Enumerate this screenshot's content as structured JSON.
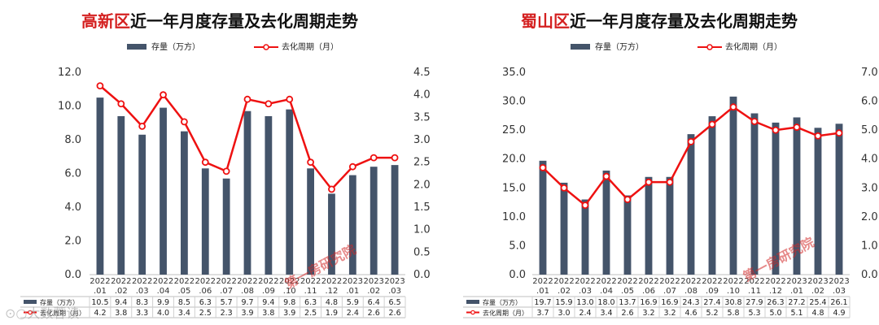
{
  "colors": {
    "bar": "#44546a",
    "line": "#ee1111",
    "title_highlight": "#d42020",
    "grid": "#d9d9d9"
  },
  "page": {
    "corner_watermark": "⊙○大数蓉读"
  },
  "chart_data": [
    {
      "id": "left",
      "type": "bar",
      "title_highlight": "高新区",
      "title_rest": "近一年月度存量及去化周期走势",
      "watermark": "第一房研究院",
      "categories": [
        [
          "2022",
          ".01"
        ],
        [
          "2022",
          ".02"
        ],
        [
          "2022",
          ".03"
        ],
        [
          "2022",
          ".04"
        ],
        [
          "2022",
          ".05"
        ],
        [
          "2022",
          ".06"
        ],
        [
          "2022",
          ".07"
        ],
        [
          "2022",
          ".08"
        ],
        [
          "2022",
          ".09"
        ],
        [
          "2022",
          ".10"
        ],
        [
          "2022",
          ".11"
        ],
        [
          "2022",
          ".12"
        ],
        [
          "2023",
          ".01"
        ],
        [
          "2023",
          ".02"
        ],
        [
          "2023",
          ".03"
        ]
      ],
      "series": [
        {
          "name": "存量（万方）",
          "type": "bar",
          "axis": "left",
          "values": [
            10.5,
            9.4,
            8.3,
            9.9,
            8.5,
            6.3,
            5.7,
            9.7,
            9.4,
            9.8,
            6.3,
            4.8,
            5.9,
            6.4,
            6.5
          ],
          "labels": [
            "10.5",
            "9.4",
            "8.3",
            "9.9",
            "8.5",
            "6.3",
            "5.7",
            "9.7",
            "9.4",
            "9.8",
            "6.3",
            "4.8",
            "5.9",
            "6.4",
            "6.5"
          ]
        },
        {
          "name": "去化周期（月）",
          "type": "line",
          "axis": "right",
          "values": [
            4.2,
            3.8,
            3.3,
            4.0,
            3.4,
            2.5,
            2.3,
            3.9,
            3.8,
            3.9,
            2.5,
            1.9,
            2.4,
            2.6,
            2.6
          ],
          "labels": [
            "4.2",
            "3.8",
            "3.3",
            "4.0",
            "3.4",
            "2.5",
            "2.3",
            "3.9",
            "3.8",
            "3.9",
            "2.5",
            "1.9",
            "2.4",
            "2.6",
            "2.6"
          ]
        }
      ],
      "y_left": {
        "min": 0,
        "max": 12,
        "ticks": [
          "0.0",
          "2.0",
          "4.0",
          "6.0",
          "8.0",
          "10.0",
          "12.0"
        ]
      },
      "y_right": {
        "min": 0,
        "max": 4.5,
        "ticks": [
          "0.0",
          "0.5",
          "1.0",
          "1.5",
          "2.0",
          "2.5",
          "3.0",
          "3.5",
          "4.0",
          "4.5"
        ]
      },
      "legend_position": "top"
    },
    {
      "id": "right",
      "type": "bar",
      "title_highlight": "蜀山区",
      "title_rest": "近一年月度存量及去化周期走势",
      "watermark": "第一房研究院",
      "categories": [
        [
          "2022",
          ".01"
        ],
        [
          "2022",
          ".02"
        ],
        [
          "2022",
          ".03"
        ],
        [
          "2022",
          ".04"
        ],
        [
          "2022",
          ".05"
        ],
        [
          "2022",
          ".06"
        ],
        [
          "2022",
          ".07"
        ],
        [
          "2022",
          ".08"
        ],
        [
          "2022",
          ".09"
        ],
        [
          "2022",
          ".10"
        ],
        [
          "2022",
          ".11"
        ],
        [
          "2022",
          ".12"
        ],
        [
          "2023",
          ".01"
        ],
        [
          "2023",
          ".02"
        ],
        [
          "2023",
          ".03"
        ]
      ],
      "series": [
        {
          "name": "存量（万方）",
          "type": "bar",
          "axis": "left",
          "values": [
            19.7,
            15.9,
            13.0,
            18.0,
            13.7,
            16.9,
            16.9,
            24.3,
            27.4,
            30.8,
            27.9,
            26.3,
            27.2,
            25.4,
            26.1
          ],
          "labels": [
            "19.7",
            "15.9",
            "13.0",
            "18.0",
            "13.7",
            "16.9",
            "16.9",
            "24.3",
            "27.4",
            "30.8",
            "27.9",
            "26.3",
            "27.2",
            "25.4",
            "26.1"
          ]
        },
        {
          "name": "去化周期（月）",
          "type": "line",
          "axis": "right",
          "values": [
            3.7,
            3.0,
            2.4,
            3.4,
            2.6,
            3.2,
            3.2,
            4.6,
            5.2,
            5.8,
            5.3,
            5.0,
            5.1,
            4.8,
            4.9
          ],
          "labels": [
            "3.7",
            "3.0",
            "2.4",
            "3.4",
            "2.6",
            "3.2",
            "3.2",
            "4.6",
            "5.2",
            "5.8",
            "5.3",
            "5.0",
            "5.1",
            "4.8",
            "4.9"
          ]
        }
      ],
      "y_left": {
        "min": 0,
        "max": 35,
        "ticks": [
          "0.0",
          "5.0",
          "10.0",
          "15.0",
          "20.0",
          "25.0",
          "30.0",
          "35.0"
        ]
      },
      "y_right": {
        "min": 0,
        "max": 7,
        "ticks": [
          "0.0",
          "1.0",
          "2.0",
          "3.0",
          "4.0",
          "5.0",
          "6.0",
          "7.0"
        ]
      },
      "legend_position": "top"
    }
  ]
}
